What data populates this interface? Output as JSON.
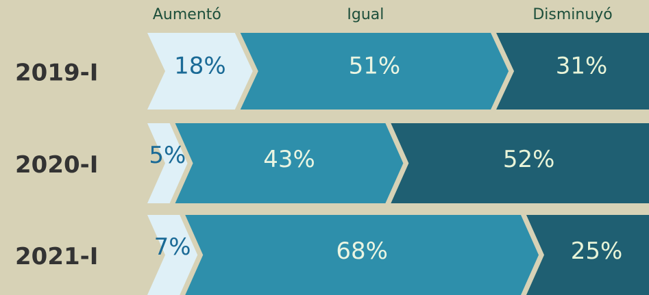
{
  "chart_data": {
    "type": "bar",
    "orientation": "horizontal",
    "stacked": true,
    "categories": [
      "2019-I",
      "2020-I",
      "2021-I"
    ],
    "series": [
      {
        "name": "Aumentó",
        "color": "#dff0f7",
        "label_color": "#1a6a96",
        "values": [
          18,
          5,
          7
        ],
        "value_labels": [
          "18%",
          "5%",
          "7%"
        ]
      },
      {
        "name": "Igual",
        "color": "#2e8fab",
        "label_color": "#eaf5e2",
        "values": [
          51,
          43,
          68
        ],
        "value_labels": [
          "51%",
          "43%",
          "68%"
        ]
      },
      {
        "name": "Disminuyó",
        "color": "#1f5f72",
        "label_color": "#e8f4d8",
        "values": [
          31,
          52,
          25
        ],
        "value_labels": [
          "31%",
          "52%",
          "25%"
        ]
      }
    ]
  }
}
